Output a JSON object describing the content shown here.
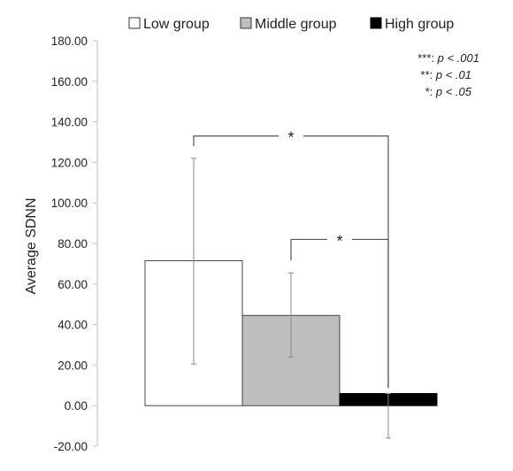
{
  "chart_data": {
    "type": "bar",
    "title": "",
    "xlabel": "",
    "ylabel": "Average SDNN",
    "ylim": [
      -20,
      180
    ],
    "ytick_step": 20,
    "yticks": [
      "180.00",
      "160.00",
      "140.00",
      "120.00",
      "100.00",
      "80.00",
      "60.00",
      "40.00",
      "20.00",
      "0.00",
      "-20.00"
    ],
    "grid": false,
    "legend": "top",
    "series": [
      {
        "name": "Low group",
        "value": 71.5,
        "error_low": 20.5,
        "error_high": 122,
        "color": "#ffffff"
      },
      {
        "name": "Middle group",
        "value": 44.5,
        "error_low": 24,
        "error_high": 65.5,
        "color": "#bebebe"
      },
      {
        "name": "High group",
        "value": 6,
        "error_low": -16,
        "error_high": 6,
        "color": "#000000"
      }
    ],
    "significance": [
      {
        "between": [
          "Low group",
          "High group"
        ],
        "label": "*",
        "level": 133
      },
      {
        "between": [
          "Middle group",
          "High group"
        ],
        "label": "*",
        "level": 82
      }
    ],
    "legend_notes": [
      {
        "stars": "***",
        "text": "p < .001"
      },
      {
        "stars": "**",
        "text": "p < .01"
      },
      {
        "stars": "*",
        "text": "p < .05"
      }
    ]
  }
}
